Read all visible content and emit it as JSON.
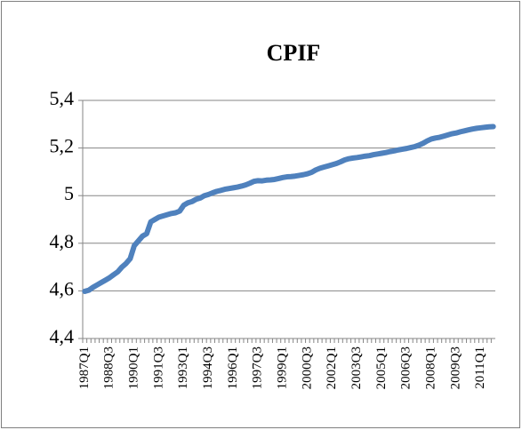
{
  "chart_data": {
    "type": "line",
    "title": "CPIF",
    "categories": [
      "1987Q1",
      null,
      null,
      null,
      null,
      null,
      "1988Q3",
      null,
      null,
      null,
      null,
      null,
      "1990Q1",
      null,
      null,
      null,
      null,
      null,
      "1991Q3",
      null,
      null,
      null,
      null,
      null,
      "1993Q1",
      null,
      null,
      null,
      null,
      null,
      "1994Q3",
      null,
      null,
      null,
      null,
      null,
      "1996Q1",
      null,
      null,
      null,
      null,
      null,
      "1997Q3",
      null,
      null,
      null,
      null,
      null,
      "1999Q1",
      null,
      null,
      null,
      null,
      null,
      "2000Q3",
      null,
      null,
      null,
      null,
      null,
      "2002Q1",
      null,
      null,
      null,
      null,
      null,
      "2003Q3",
      null,
      null,
      null,
      null,
      null,
      "2005Q1",
      null,
      null,
      null,
      null,
      null,
      "2006Q3",
      null,
      null,
      null,
      null,
      null,
      "2008Q1",
      null,
      null,
      null,
      null,
      null,
      "2009Q3",
      null,
      null,
      null,
      null,
      null,
      "2011Q1",
      null,
      null,
      null
    ],
    "series": [
      {
        "name": "CPIF",
        "color": "#4f81bd",
        "values": [
          4.598,
          4.603,
          4.615,
          4.625,
          4.635,
          4.645,
          4.655,
          4.668,
          4.68,
          4.7,
          4.715,
          4.735,
          4.79,
          4.81,
          4.83,
          4.84,
          4.89,
          4.9,
          4.91,
          4.915,
          4.92,
          4.925,
          4.928,
          4.935,
          4.96,
          4.97,
          4.975,
          4.985,
          4.99,
          5.0,
          5.005,
          5.012,
          5.018,
          5.022,
          5.027,
          5.03,
          5.033,
          5.036,
          5.04,
          5.045,
          5.052,
          5.06,
          5.063,
          5.062,
          5.065,
          5.066,
          5.068,
          5.072,
          5.076,
          5.079,
          5.08,
          5.082,
          5.085,
          5.088,
          5.092,
          5.098,
          5.108,
          5.115,
          5.12,
          5.125,
          5.13,
          5.135,
          5.142,
          5.15,
          5.155,
          5.158,
          5.16,
          5.163,
          5.166,
          5.168,
          5.172,
          5.175,
          5.178,
          5.181,
          5.185,
          5.188,
          5.192,
          5.195,
          5.198,
          5.202,
          5.206,
          5.212,
          5.22,
          5.23,
          5.238,
          5.242,
          5.245,
          5.25,
          5.255,
          5.26,
          5.263,
          5.268,
          5.272,
          5.276,
          5.28,
          5.283,
          5.285,
          5.287,
          5.289,
          5.29
        ]
      }
    ],
    "ylim": [
      4.4,
      5.4
    ],
    "yticks": [
      {
        "value": 4.4,
        "label": "4,4"
      },
      {
        "value": 4.6,
        "label": "4,6"
      },
      {
        "value": 4.8,
        "label": "4,8"
      },
      5,
      {
        "value": 5.2,
        "label": "5,2"
      },
      {
        "value": 5.4,
        "label": "5,4"
      }
    ],
    "grid": true
  }
}
